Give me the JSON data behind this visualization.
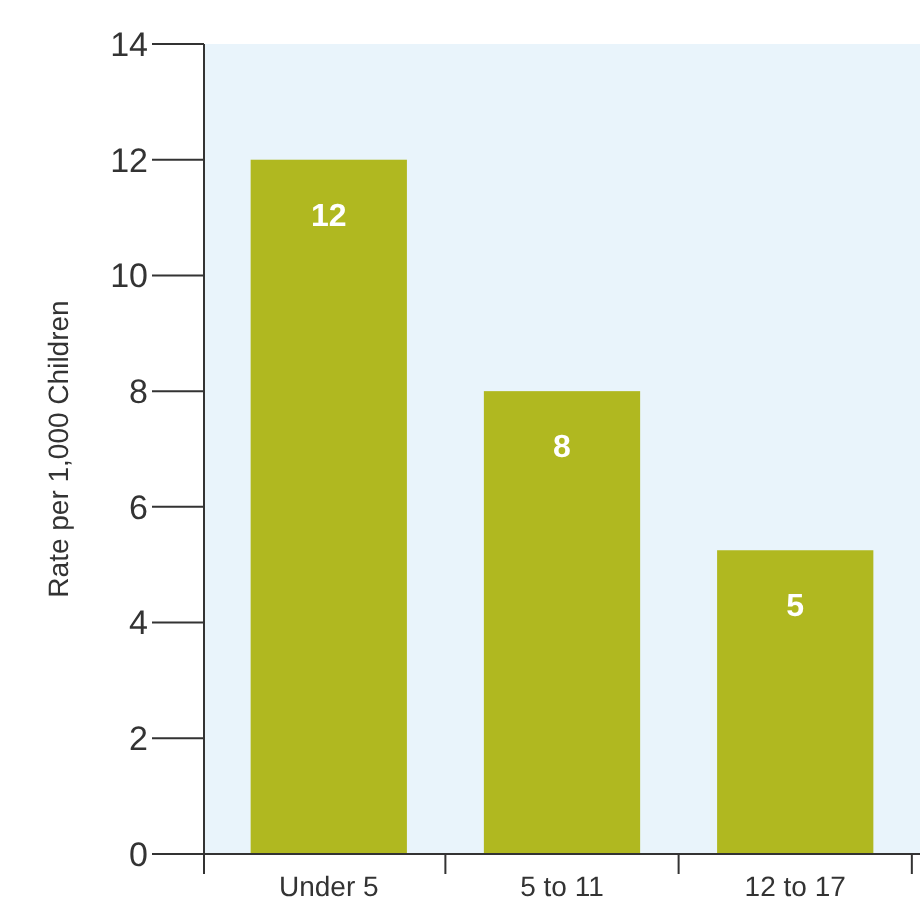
{
  "chart_data": {
    "type": "bar",
    "ylabel": "Rate per 1,000 Children",
    "categories": [
      "Under 5",
      "5 to 11",
      "12 to 17"
    ],
    "values": [
      12,
      8,
      5.25
    ],
    "value_labels": [
      "12",
      "8",
      "5"
    ],
    "color": "#b0b820",
    "ylim": [
      0,
      14
    ],
    "yticks": [
      0,
      2,
      4,
      6,
      8,
      10,
      12,
      14
    ],
    "grid": false
  }
}
